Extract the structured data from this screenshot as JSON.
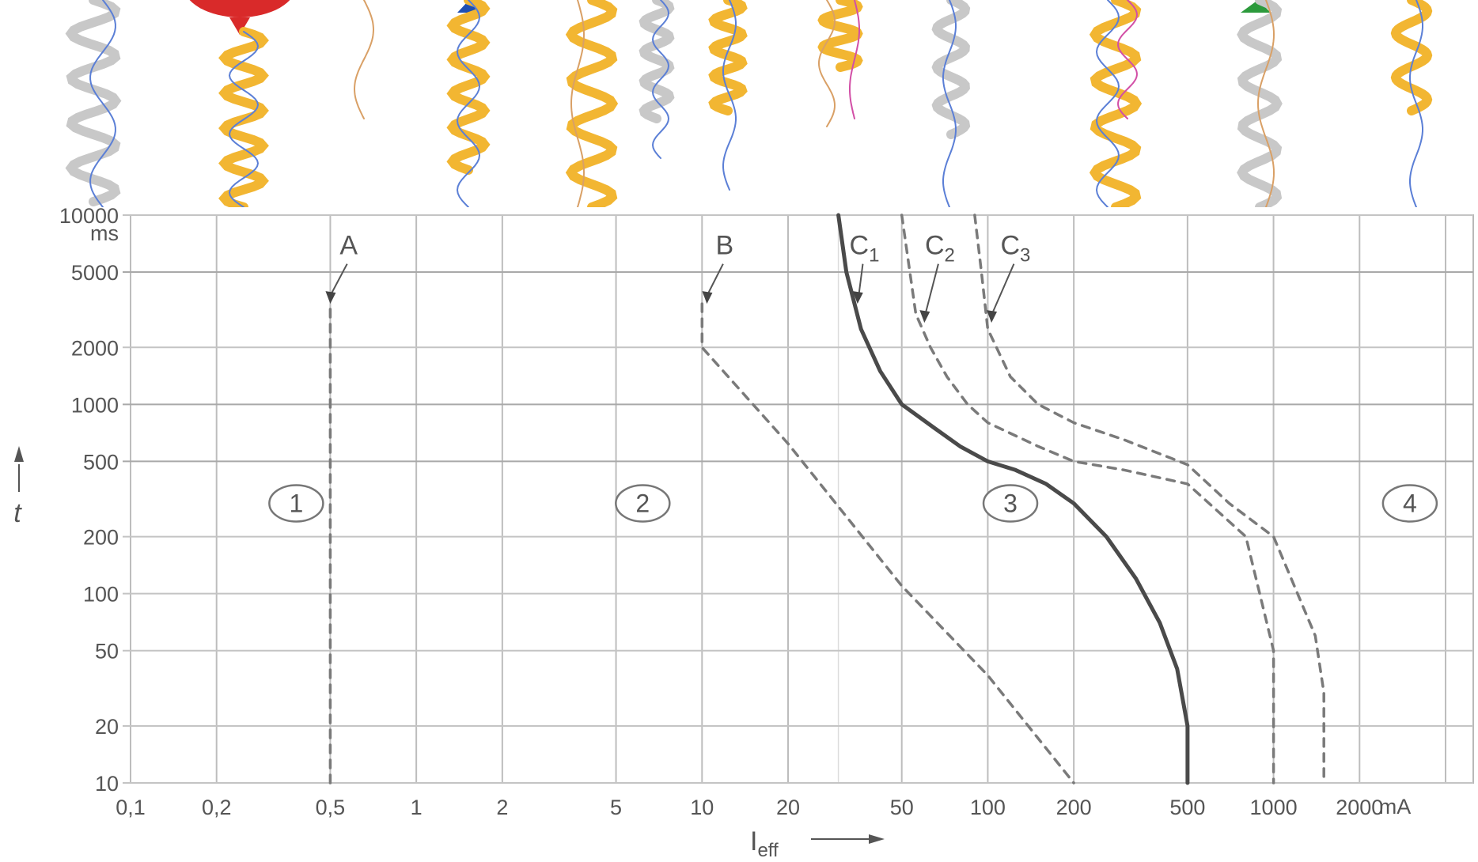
{
  "chart_data": {
    "type": "line",
    "x_scale": "log",
    "y_scale": "log",
    "xlabel": "I",
    "xlabel_subscript": "eff",
    "ylabel": "t",
    "x_unit": "mA",
    "y_unit": "ms",
    "xlim": [
      0.1,
      5000
    ],
    "ylim": [
      10,
      10000
    ],
    "grid": true,
    "x_ticks": [
      {
        "value": 0.1,
        "label": "0,1"
      },
      {
        "value": 0.2,
        "label": "0,2"
      },
      {
        "value": 0.5,
        "label": "0,5"
      },
      {
        "value": 1,
        "label": "1"
      },
      {
        "value": 2,
        "label": "2"
      },
      {
        "value": 5,
        "label": "5"
      },
      {
        "value": 10,
        "label": "10"
      },
      {
        "value": 20,
        "label": "20"
      },
      {
        "value": 50,
        "label": "50"
      },
      {
        "value": 100,
        "label": "100"
      },
      {
        "value": 200,
        "label": "200"
      },
      {
        "value": 500,
        "label": "500"
      },
      {
        "value": 1000,
        "label": "1000"
      },
      {
        "value": 2000,
        "label": "2000"
      }
    ],
    "y_ticks": [
      {
        "value": 10,
        "label": "10"
      },
      {
        "value": 20,
        "label": "20"
      },
      {
        "value": 50,
        "label": "50"
      },
      {
        "value": 100,
        "label": "100"
      },
      {
        "value": 200,
        "label": "200"
      },
      {
        "value": 500,
        "label": "500"
      },
      {
        "value": 1000,
        "label": "1000"
      },
      {
        "value": 2000,
        "label": "2000"
      },
      {
        "value": 5000,
        "label": "5000"
      },
      {
        "value": 10000,
        "label": "10000"
      }
    ],
    "zones": [
      {
        "label": "1",
        "x": 0.38,
        "y": 300
      },
      {
        "label": "2",
        "x": 6.2,
        "y": 300
      },
      {
        "label": "3",
        "x": 120,
        "y": 300
      },
      {
        "label": "4",
        "x": 3000,
        "y": 300
      }
    ],
    "series": [
      {
        "name": "A",
        "style": "dashed",
        "x": [
          0.5,
          0.5
        ],
        "y": [
          10,
          3400
        ]
      },
      {
        "name": "B",
        "style": "dashed",
        "x": [
          10,
          10,
          20,
          50,
          100,
          200
        ],
        "y": [
          3400,
          2000,
          620,
          110,
          37,
          10
        ]
      },
      {
        "name": "C1",
        "style": "solid",
        "x": [
          30,
          32,
          36,
          42,
          50,
          65,
          80,
          100,
          125,
          160,
          200,
          260,
          330,
          400,
          460,
          500,
          500
        ],
        "y": [
          10000,
          5000,
          2500,
          1500,
          1000,
          750,
          600,
          500,
          450,
          380,
          300,
          200,
          120,
          70,
          40,
          20,
          10
        ]
      },
      {
        "name": "C2",
        "style": "dashed",
        "x": [
          50,
          56,
          63,
          72,
          85,
          100,
          150,
          200,
          300,
          500,
          800,
          1000,
          1000
        ],
        "y": [
          10000,
          3000,
          2000,
          1400,
          1000,
          800,
          600,
          500,
          450,
          380,
          200,
          50,
          10
        ]
      },
      {
        "name": "C3",
        "style": "dashed",
        "x": [
          90,
          95,
          100,
          120,
          150,
          200,
          300,
          500,
          700,
          1000,
          1400,
          1500,
          1500
        ],
        "y": [
          10000,
          5000,
          2500,
          1400,
          1000,
          800,
          650,
          480,
          300,
          200,
          60,
          30,
          10
        ]
      }
    ],
    "curve_labels": [
      {
        "name": "A",
        "text": "A",
        "sub": "",
        "tx": 0.58,
        "ty": 6200,
        "ax": 0.5,
        "ay": 3400
      },
      {
        "name": "B",
        "text": "B",
        "sub": "",
        "tx": 12,
        "ty": 6200,
        "ax": 10.4,
        "ay": 3400
      },
      {
        "name": "C1",
        "text": "C",
        "sub": "1",
        "tx": 37,
        "ty": 6200,
        "ax": 35,
        "ay": 3400
      },
      {
        "name": "C2",
        "text": "C",
        "sub": "2",
        "tx": 68,
        "ty": 6200,
        "ax": 60,
        "ay": 2700
      },
      {
        "name": "C3",
        "text": "C",
        "sub": "3",
        "tx": 125,
        "ty": 6200,
        "ax": 103,
        "ay": 2700
      }
    ]
  },
  "decor": {
    "balloon_color": "#d92a2a",
    "streamer_gold": "#f2b632",
    "streamer_silver": "#c8c8c8",
    "string_blue": "#5b7fd6",
    "string_tan": "#d9a066",
    "string_pink": "#d24fa6",
    "balloon_tie_blue": "#1f4fb3",
    "balloon_tie_green": "#2c9a3c"
  }
}
